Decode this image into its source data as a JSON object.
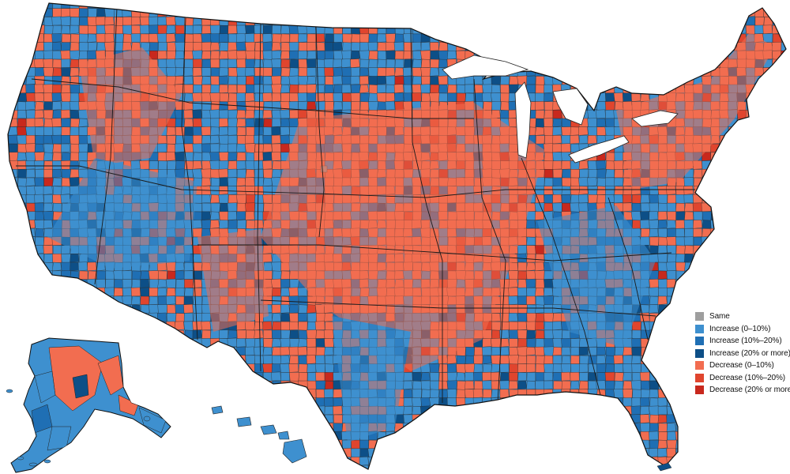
{
  "colors": {
    "same": "#9e9e9e",
    "inc_low": "#3e90cf",
    "inc_mid": "#1f6fb4",
    "inc_high": "#0d4f87",
    "dec_low": "#f26d50",
    "dec_mid": "#e0452e",
    "dec_high": "#c8281d",
    "border": "#2a2a2a",
    "state_border": "#111111"
  },
  "legend": {
    "items": [
      {
        "label": "Same",
        "color": "#9e9e9e"
      },
      {
        "label": "Increase (0–10%)",
        "color": "#3e90cf"
      },
      {
        "label": "Increase (10%–20%)",
        "color": "#1f6fb4"
      },
      {
        "label": "Increase (20% or more)",
        "color": "#0d4f87"
      },
      {
        "label": "Decrease (0–10%)",
        "color": "#f26d50"
      },
      {
        "label": "Decrease (10%–20%)",
        "color": "#e0452e"
      },
      {
        "label": "Decrease (20% or more)",
        "color": "#c8281d"
      }
    ]
  }
}
